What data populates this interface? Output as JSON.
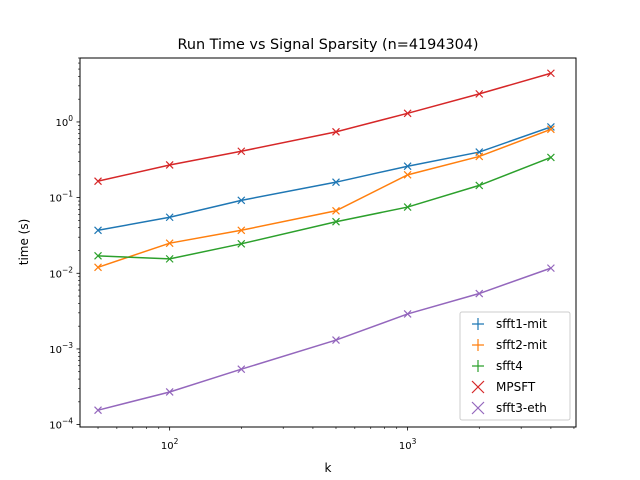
{
  "chart_data": {
    "type": "line",
    "title": "Run Time vs Signal Sparsity (n=4194304)",
    "xlabel": "k",
    "ylabel": "time (s)",
    "x_scale": "log",
    "y_scale": "log",
    "xlim": [
      42,
      5100
    ],
    "ylim": [
      9.3e-05,
      7
    ],
    "x_ticks": [
      {
        "value": 100,
        "base": "10",
        "exp": "2"
      },
      {
        "value": 1000,
        "base": "10",
        "exp": "3"
      }
    ],
    "y_ticks": [
      {
        "value": 0.0001,
        "base": "10",
        "exp": "−4"
      },
      {
        "value": 0.001,
        "base": "10",
        "exp": "−3"
      },
      {
        "value": 0.01,
        "base": "10",
        "exp": "−2"
      },
      {
        "value": 0.1,
        "base": "10",
        "exp": "−1"
      },
      {
        "value": 1,
        "base": "10",
        "exp": "0"
      }
    ],
    "x": [
      50,
      100,
      200,
      500,
      1000,
      2000,
      4000
    ],
    "series": [
      {
        "name": "sfft1-mit",
        "color": "#1f77b4",
        "marker": "+",
        "values": [
          0.037,
          0.055,
          0.092,
          0.16,
          0.26,
          0.4,
          0.86
        ]
      },
      {
        "name": "sfft2-mit",
        "color": "#ff7f0e",
        "marker": "+",
        "values": [
          0.012,
          0.025,
          0.037,
          0.067,
          0.2,
          0.35,
          0.8
        ]
      },
      {
        "name": "sfft4",
        "color": "#2ca02c",
        "marker": "+",
        "values": [
          0.017,
          0.0155,
          0.0245,
          0.048,
          0.075,
          0.145,
          0.34
        ]
      },
      {
        "name": "MPSFT",
        "color": "#d62728",
        "marker": "x",
        "values": [
          0.165,
          0.27,
          0.41,
          0.74,
          1.3,
          2.35,
          4.4
        ]
      },
      {
        "name": "sfft3-eth",
        "color": "#9467bd",
        "marker": "x",
        "values": [
          0.000155,
          0.00027,
          0.00054,
          0.00131,
          0.0029,
          0.0054,
          0.0117
        ]
      }
    ],
    "grid": false,
    "legend_position": "lower-right"
  }
}
